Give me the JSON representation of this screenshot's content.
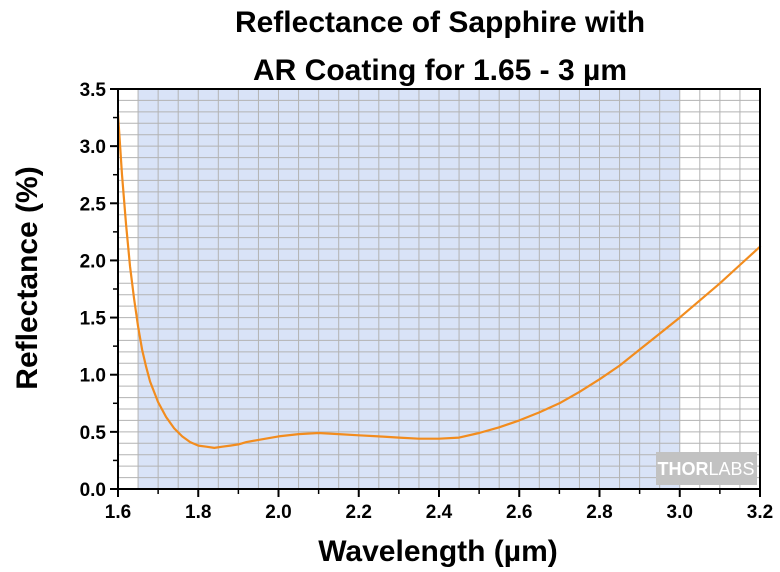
{
  "chart_data": {
    "type": "line",
    "title_lines": [
      "Reflectance of Sapphire with",
      "AR Coating for 1.65 - 3 µm"
    ],
    "xlabel": "Wavelength (µm)",
    "ylabel": "Reflectance (%)",
    "xlim": [
      1.6,
      3.2
    ],
    "ylim": [
      0.0,
      3.5
    ],
    "x_ticks": [
      "1.6",
      "1.8",
      "2.0",
      "2.2",
      "2.4",
      "2.6",
      "2.8",
      "3.0",
      "3.2"
    ],
    "y_ticks": [
      "0.0",
      "0.5",
      "1.0",
      "1.5",
      "2.0",
      "2.5",
      "3.0",
      "3.5"
    ],
    "grid": true,
    "highlight_band": [
      1.65,
      3.0
    ],
    "watermark": {
      "brand_bold": "THOR",
      "brand_light": "LABS"
    },
    "colors": {
      "line": "#f28c1e",
      "band": "#d9e3f7",
      "grid": "#b3b3b3"
    },
    "series": [
      {
        "x": [
          1.6,
          1.61,
          1.62,
          1.63,
          1.64,
          1.65,
          1.66,
          1.67,
          1.68,
          1.69,
          1.7,
          1.72,
          1.74,
          1.76,
          1.78,
          1.8,
          1.82,
          1.84,
          1.86,
          1.88,
          1.9,
          1.92,
          1.95,
          2.0,
          2.05,
          2.1,
          2.15,
          2.2,
          2.25,
          2.3,
          2.35,
          2.4,
          2.45,
          2.5,
          2.55,
          2.6,
          2.65,
          2.7,
          2.75,
          2.8,
          2.85,
          2.9,
          2.95,
          3.0,
          3.05,
          3.1,
          3.15,
          3.2
        ],
        "y": [
          3.28,
          2.75,
          2.32,
          1.95,
          1.67,
          1.42,
          1.22,
          1.07,
          0.94,
          0.85,
          0.76,
          0.63,
          0.53,
          0.46,
          0.41,
          0.38,
          0.37,
          0.36,
          0.37,
          0.38,
          0.39,
          0.41,
          0.43,
          0.46,
          0.48,
          0.49,
          0.48,
          0.47,
          0.46,
          0.45,
          0.44,
          0.44,
          0.45,
          0.49,
          0.54,
          0.6,
          0.67,
          0.75,
          0.85,
          0.96,
          1.08,
          1.22,
          1.36,
          1.5,
          1.65,
          1.8,
          1.96,
          2.12
        ]
      }
    ]
  }
}
